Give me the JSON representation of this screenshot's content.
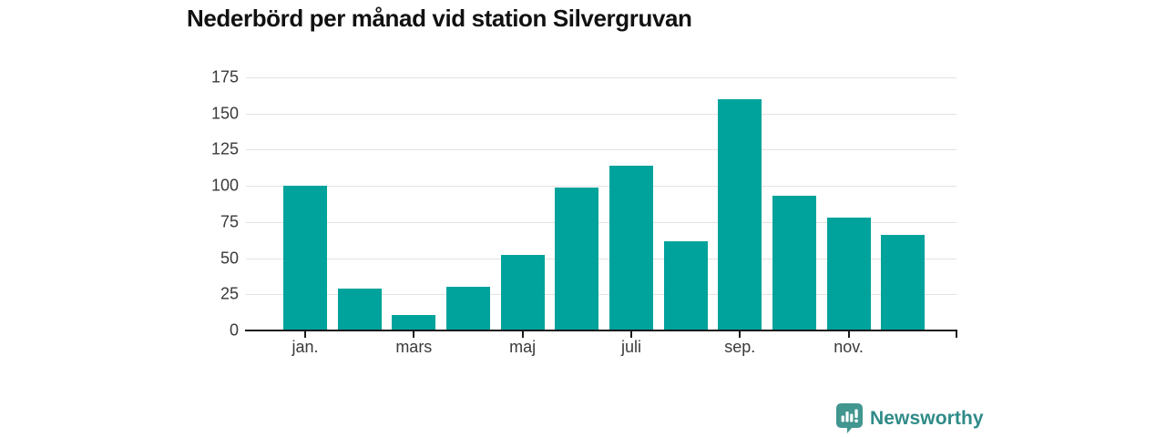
{
  "title": "Nederbörd per månad vid station Silvergruvan",
  "branding": {
    "logo_text": "Newsworthy"
  },
  "colors": {
    "bar": "#00a39b",
    "axis": "#1a1a1a",
    "grid": "#e2e2e2",
    "tick_label": "#3a3a3a",
    "title": "#111111",
    "logo_text": "#2f8b88",
    "logo_icon": "#41968f"
  },
  "chart_data": {
    "type": "bar",
    "title": "Nederbörd per månad vid station Silvergruvan",
    "categories": [
      "jan.",
      "",
      "mars",
      "",
      "maj",
      "",
      "juli",
      "",
      "sep.",
      "",
      "nov.",
      ""
    ],
    "values": [
      100,
      29,
      11,
      30,
      52,
      99,
      114,
      62,
      160,
      93,
      78,
      66
    ],
    "labeled_indices": [
      0,
      2,
      4,
      6,
      8,
      10
    ],
    "xlabel": "",
    "ylabel": "",
    "ylim": [
      0,
      175
    ],
    "y_ticks": [
      0,
      25,
      50,
      75,
      100,
      125,
      150,
      175
    ],
    "grid": "horizontal",
    "legend": "none"
  }
}
